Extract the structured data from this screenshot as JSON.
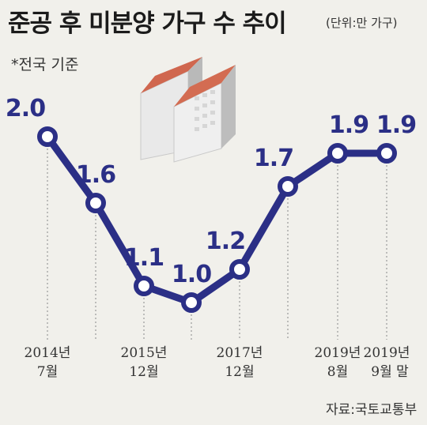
{
  "header": {
    "title": "준공 후 미분양 가구 수 추이",
    "unit": "(단위:만 가구)",
    "note": "*전국 기준"
  },
  "source": "자료:국토교통부",
  "chart_data": {
    "type": "line",
    "title": "준공 후 미분양 가구 수 추이",
    "unit": "만 가구",
    "categories": [
      [
        "2014년",
        "7월"
      ],
      [
        "",
        ""
      ],
      [
        "2015년",
        "12월"
      ],
      [
        "",
        ""
      ],
      [
        "2017년",
        "12월"
      ],
      [
        "",
        ""
      ],
      [
        "2019년",
        "8월"
      ],
      [
        "2019년",
        "9월 말"
      ]
    ],
    "values": [
      2.0,
      1.6,
      1.1,
      1.0,
      1.2,
      1.7,
      1.9,
      1.9
    ],
    "value_labels": [
      "2.0",
      "1.6",
      "1.1",
      "1.0",
      "1.2",
      "1.7",
      "1.9",
      "1.9"
    ],
    "series_color": "#2b2f86",
    "grid": false,
    "legend": "none"
  }
}
